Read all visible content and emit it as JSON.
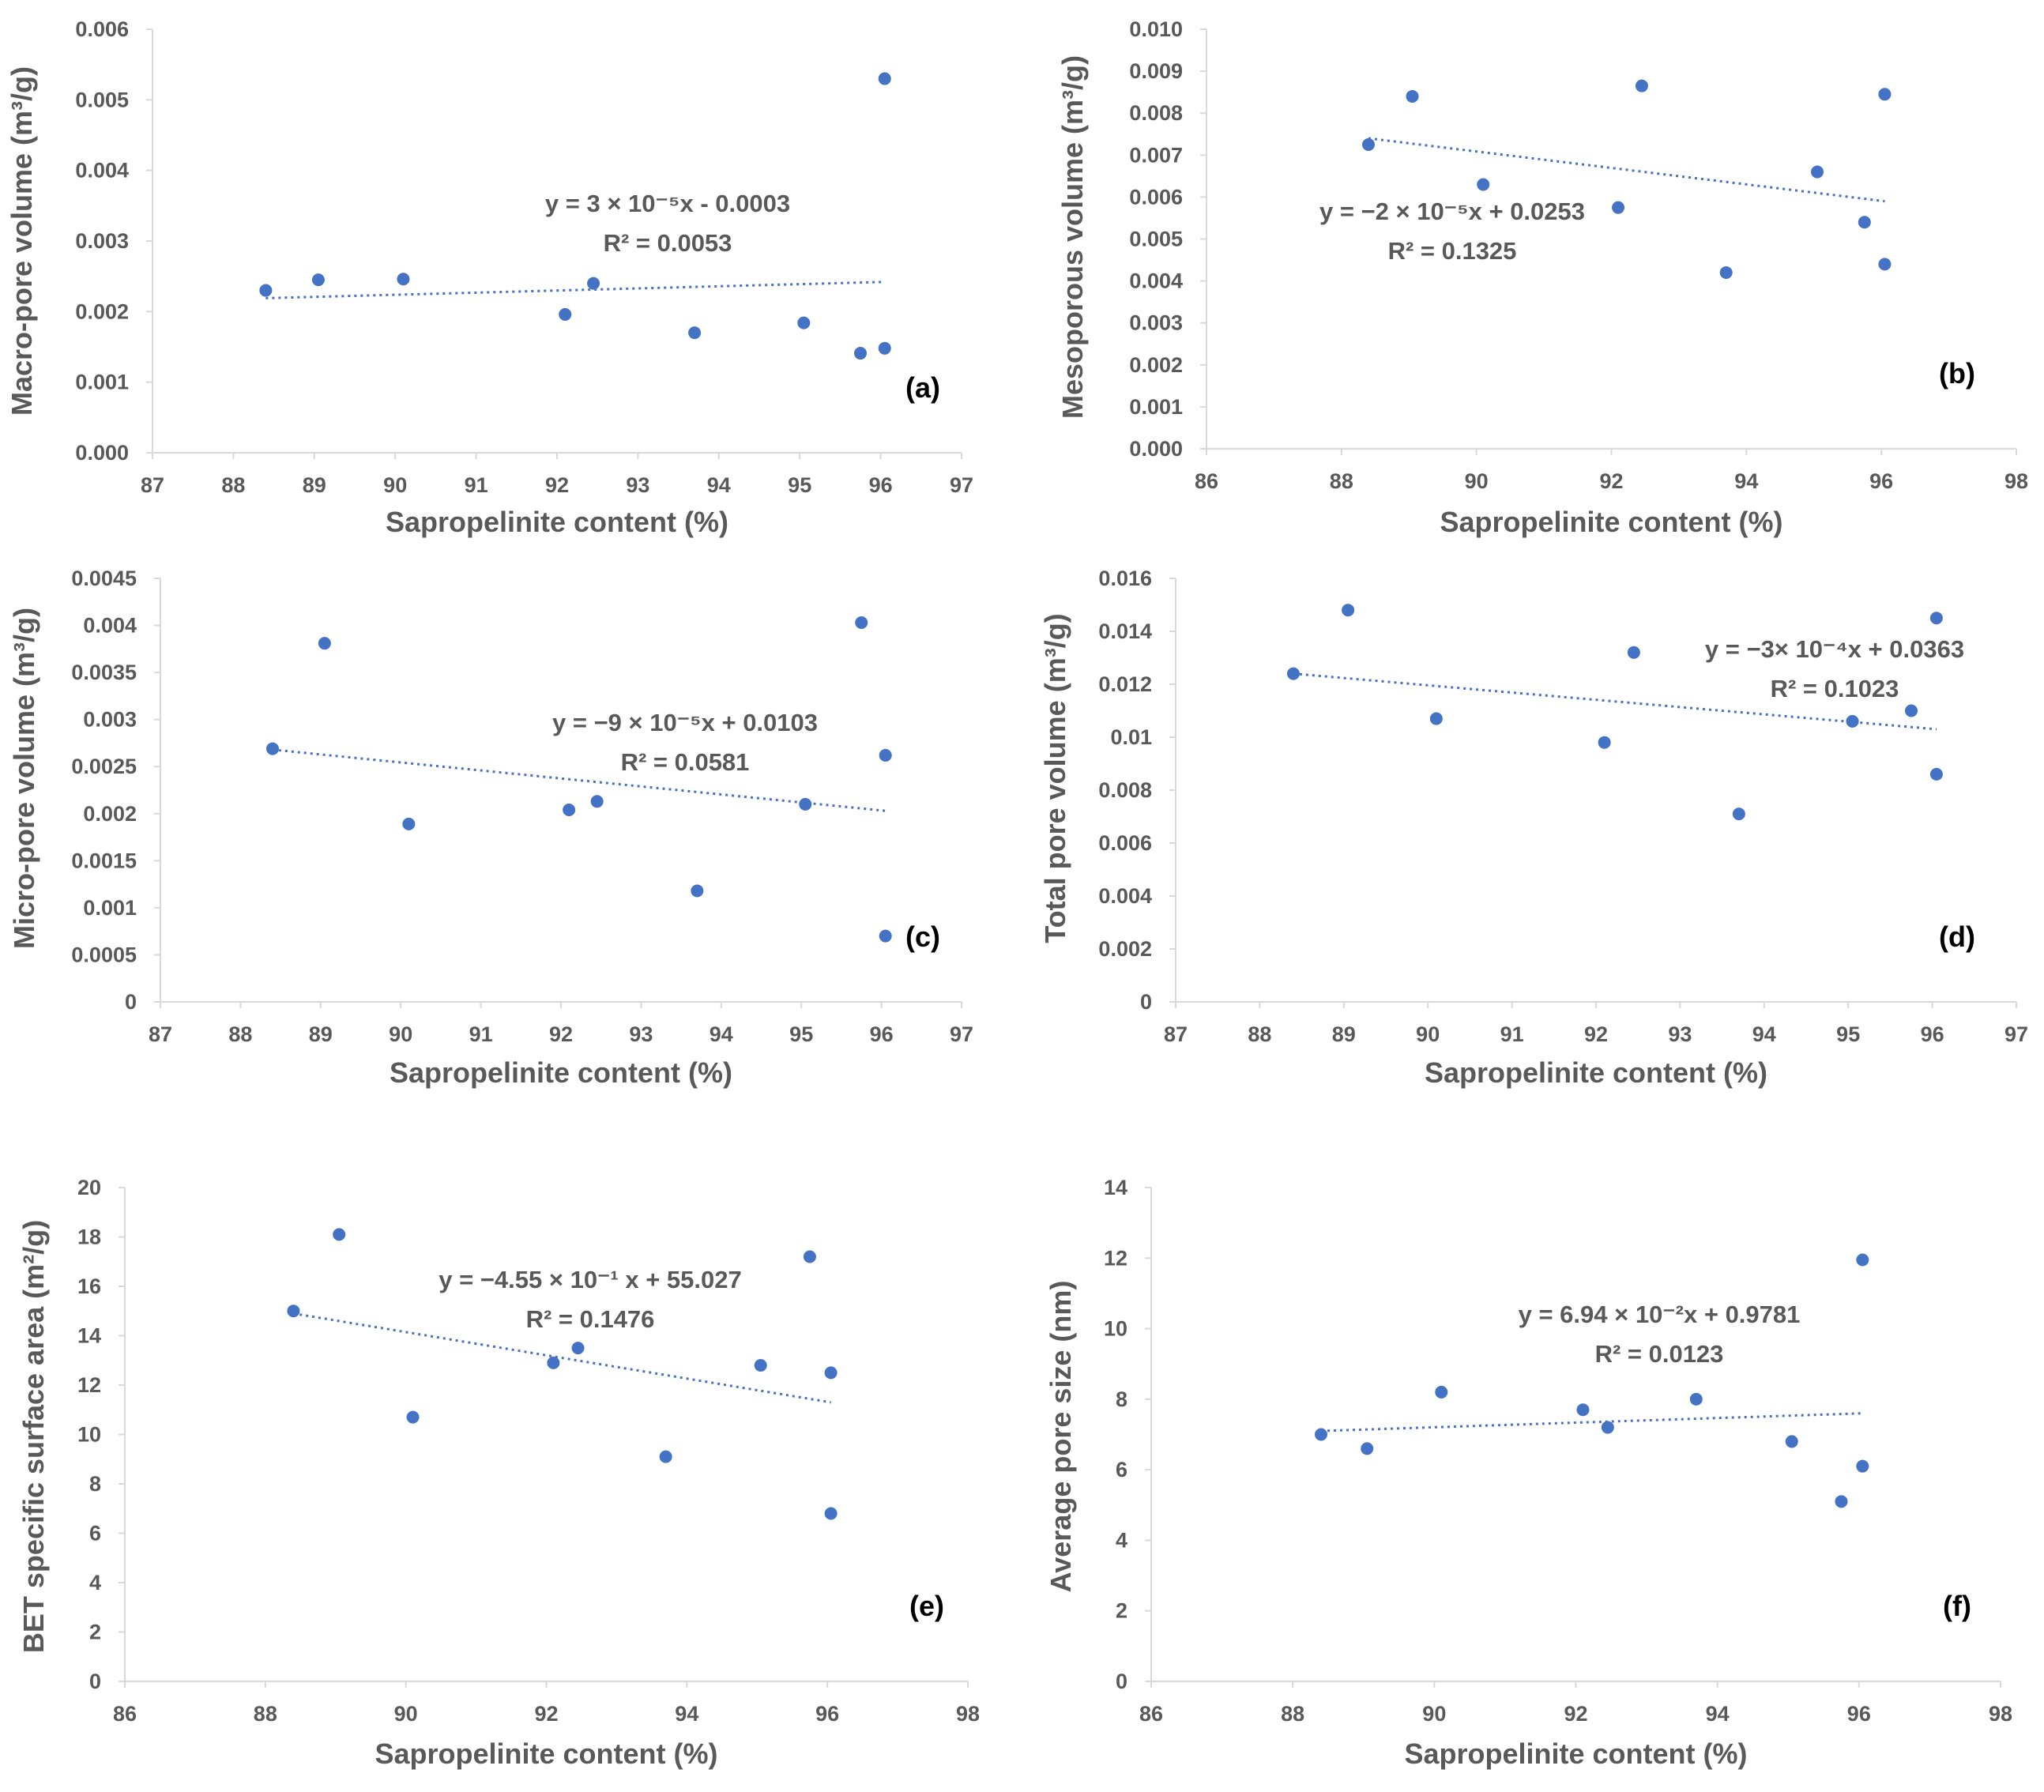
{
  "chart_data": [
    {
      "type": "scatter",
      "panel_label": "(a)",
      "title": "",
      "xlabel": "Sapropelinite content (%)",
      "ylabel": "Macro-pore volume (m³/g)",
      "xlim": [
        87,
        97
      ],
      "ylim": [
        0,
        0.006
      ],
      "xticks": [
        "87",
        "88",
        "89",
        "90",
        "91",
        "92",
        "93",
        "94",
        "95",
        "96",
        "97"
      ],
      "yticks": [
        "0.000",
        "0.001",
        "0.002",
        "0.003",
        "0.004",
        "0.005",
        "0.006"
      ],
      "x": [
        88.4,
        89.05,
        90.1,
        92.1,
        92.45,
        93.7,
        95.05,
        95.75,
        96.05,
        96.05
      ],
      "y": [
        0.0023,
        0.00245,
        0.00246,
        0.00196,
        0.0024,
        0.0017,
        0.00184,
        0.00141,
        0.00148,
        0.0053
      ],
      "trendline": {
        "x": [
          88.4,
          96.05
        ],
        "y": [
          0.00219,
          0.00242
        ]
      },
      "equation": "y = 3 × 10⁻⁵x - 0.0003",
      "r2": "R² = 0.0053"
    },
    {
      "type": "scatter",
      "panel_label": "(b)",
      "title": "",
      "xlabel": "Sapropelinite content (%)",
      "ylabel": "Mesoporous volume (m³/g)",
      "xlim": [
        86,
        98
      ],
      "ylim": [
        0,
        0.01
      ],
      "xticks": [
        "86",
        "88",
        "90",
        "92",
        "94",
        "96",
        "98"
      ],
      "yticks": [
        "0.000",
        "0.001",
        "0.002",
        "0.003",
        "0.004",
        "0.005",
        "0.006",
        "0.007",
        "0.008",
        "0.009",
        "0.010"
      ],
      "x": [
        88.4,
        89.05,
        90.1,
        92.1,
        92.45,
        93.7,
        95.05,
        95.75,
        96.05,
        96.05
      ],
      "y": [
        0.00725,
        0.0084,
        0.0063,
        0.00575,
        0.00865,
        0.0042,
        0.0066,
        0.0054,
        0.0044,
        0.00845
      ],
      "trendline": {
        "x": [
          88.4,
          96.05
        ],
        "y": [
          0.0074,
          0.0059
        ]
      },
      "equation": "y = −2 × 10⁻⁵x + 0.0253",
      "r2": "R² = 0.1325"
    },
    {
      "type": "scatter",
      "panel_label": "(c)",
      "title": "",
      "xlabel": "Sapropelinite content (%)",
      "ylabel": "Micro-pore volume (m³/g)",
      "xlim": [
        87,
        97
      ],
      "ylim": [
        0,
        0.0045
      ],
      "xticks": [
        "87",
        "88",
        "89",
        "90",
        "91",
        "92",
        "93",
        "94",
        "95",
        "96",
        "97"
      ],
      "yticks": [
        "0",
        "0.0005",
        "0.001",
        "0.0015",
        "0.002",
        "0.0025",
        "0.003",
        "0.0035",
        "0.004",
        "0.0045"
      ],
      "x": [
        88.4,
        89.05,
        90.1,
        92.1,
        92.45,
        93.7,
        95.05,
        95.75,
        96.05,
        96.05
      ],
      "y": [
        0.00269,
        0.00381,
        0.00189,
        0.00204,
        0.00213,
        0.00118,
        0.0021,
        0.00403,
        0.0007,
        0.00262
      ],
      "trendline": {
        "x": [
          88.4,
          96.05
        ],
        "y": [
          0.00268,
          0.00203
        ]
      },
      "equation": "y = −9 × 10⁻⁵x + 0.0103",
      "r2": "R² = 0.0581"
    },
    {
      "type": "scatter",
      "panel_label": "(d)",
      "title": "",
      "xlabel": "Sapropelinite content (%)",
      "ylabel": "Total pore volume (m³/g)",
      "xlim": [
        87,
        97
      ],
      "ylim": [
        0,
        0.016
      ],
      "xticks": [
        "87",
        "88",
        "89",
        "90",
        "91",
        "92",
        "93",
        "94",
        "95",
        "96",
        "97"
      ],
      "yticks": [
        "0",
        "0.002",
        "0.004",
        "0.006",
        "0.008",
        "0.01",
        "0.012",
        "0.014",
        "0.016"
      ],
      "x": [
        88.4,
        89.05,
        90.1,
        92.1,
        92.45,
        93.7,
        95.05,
        95.75,
        96.05,
        96.05
      ],
      "y": [
        0.0124,
        0.0148,
        0.0107,
        0.0098,
        0.0132,
        0.0071,
        0.0106,
        0.011,
        0.0086,
        0.0145
      ],
      "trendline": {
        "x": [
          88.4,
          96.05
        ],
        "y": [
          0.0124,
          0.0103
        ]
      },
      "equation": "y = −3× 10⁻⁴x + 0.0363",
      "r2": "R² = 0.1023"
    },
    {
      "type": "scatter",
      "panel_label": "(e)",
      "title": "",
      "xlabel": "Sapropelinite content (%)",
      "ylabel": "BET specific surface area (m²/g)",
      "xlim": [
        86,
        98
      ],
      "ylim": [
        0,
        20
      ],
      "xticks": [
        "86",
        "88",
        "90",
        "92",
        "94",
        "96",
        "98"
      ],
      "yticks": [
        "0",
        "2",
        "4",
        "6",
        "8",
        "10",
        "12",
        "14",
        "16",
        "18",
        "20"
      ],
      "x": [
        88.4,
        89.05,
        90.1,
        92.1,
        92.45,
        93.7,
        95.05,
        95.75,
        96.05,
        96.05
      ],
      "y": [
        15.0,
        18.1,
        10.7,
        12.9,
        13.5,
        9.1,
        12.8,
        17.2,
        6.8,
        12.5
      ],
      "trendline": {
        "x": [
          88.4,
          96.05
        ],
        "y": [
          14.9,
          11.3
        ]
      },
      "equation": "y = −4.55 × 10⁻¹ x + 55.027",
      "r2": "R² = 0.1476"
    },
    {
      "type": "scatter",
      "panel_label": "(f)",
      "title": "",
      "xlabel": "Sapropelinite content (%)",
      "ylabel": "Average pore size (nm)",
      "xlim": [
        86,
        98
      ],
      "ylim": [
        0,
        14
      ],
      "xticks": [
        "86",
        "88",
        "90",
        "92",
        "94",
        "96",
        "98"
      ],
      "yticks": [
        "0",
        "2",
        "4",
        "6",
        "8",
        "10",
        "12",
        "14"
      ],
      "x": [
        88.4,
        89.05,
        90.1,
        92.1,
        92.45,
        93.7,
        95.05,
        95.75,
        96.05,
        96.05
      ],
      "y": [
        7.0,
        6.6,
        8.2,
        7.7,
        7.2,
        8.0,
        6.8,
        5.1,
        6.1,
        11.95
      ],
      "trendline": {
        "x": [
          88.4,
          96.05
        ],
        "y": [
          7.1,
          7.6
        ]
      },
      "equation": "y = 6.94 × 10⁻²x  + 0.9781",
      "r2": "R² = 0.0123"
    }
  ]
}
